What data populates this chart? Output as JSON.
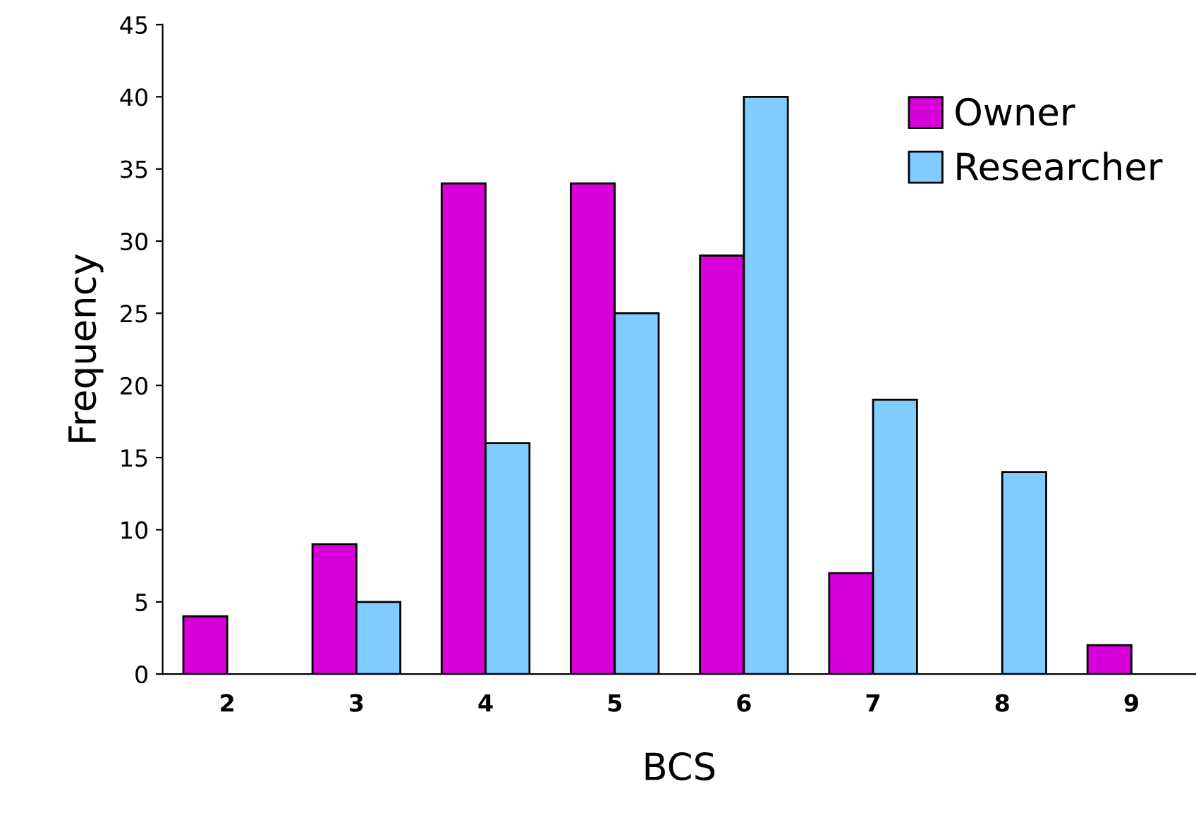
{
  "chart_data": {
    "type": "bar",
    "xlabel": "BCS",
    "ylabel": "Frequency",
    "categories": [
      "2",
      "3",
      "4",
      "5",
      "6",
      "7",
      "8",
      "9"
    ],
    "series": [
      {
        "name": "Owner",
        "color": "#d800d8",
        "values": [
          4,
          9,
          34,
          34,
          29,
          7,
          0,
          2
        ]
      },
      {
        "name": "Researcher",
        "color": "#80ccff",
        "values": [
          0,
          5,
          16,
          25,
          40,
          19,
          14,
          0
        ]
      }
    ],
    "ylim": [
      0,
      45
    ],
    "yticks": [
      0,
      5,
      10,
      15,
      20,
      25,
      30,
      35,
      40,
      45
    ],
    "grid": false,
    "legend": "top right"
  }
}
